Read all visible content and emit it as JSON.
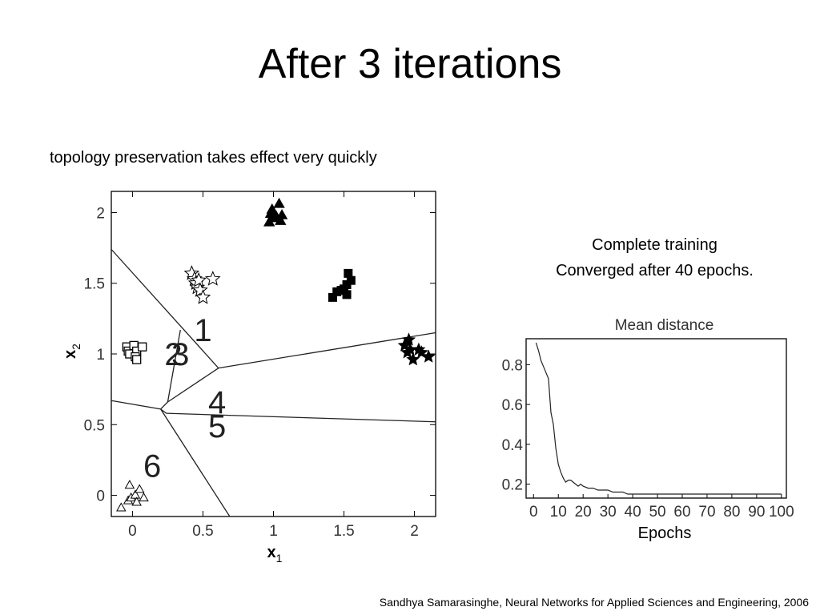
{
  "slide": {
    "title": "After 3 iterations",
    "subtitle": "topology preservation takes effect very quickly",
    "training_note": {
      "line1": "Complete training",
      "line2": "Converged after 40 epochs."
    },
    "citation": "Sandhya Samarasinghe, Neural Networks for Applied Sciences and Engineering, 2006"
  },
  "chart_data": [
    {
      "type": "scatter",
      "title": "",
      "xlabel": "x1",
      "ylabel": "x2",
      "xlim": [
        -0.15,
        2.15
      ],
      "ylim": [
        -0.15,
        2.15
      ],
      "xticks": [
        0,
        0.5,
        1,
        1.5,
        2
      ],
      "yticks": [
        0,
        0.5,
        1,
        1.5,
        2
      ],
      "xtick_labels": [
        "0",
        "0.5",
        "1",
        "1.5",
        "2"
      ],
      "ytick_labels": [
        "0",
        "0.5",
        "1",
        "1.5",
        "2"
      ],
      "grid": false,
      "clusters": [
        {
          "marker": "filled-triangle",
          "points": [
            [
              0.97,
              1.93
            ],
            [
              0.98,
              1.99
            ],
            [
              1.0,
              1.96
            ],
            [
              1.02,
              1.97
            ],
            [
              1.04,
              2.06
            ],
            [
              1.05,
              1.94
            ],
            [
              1.06,
              1.98
            ],
            [
              0.99,
              2.02
            ]
          ]
        },
        {
          "marker": "filled-square",
          "points": [
            [
              1.42,
              1.4
            ],
            [
              1.45,
              1.44
            ],
            [
              1.48,
              1.45
            ],
            [
              1.5,
              1.46
            ],
            [
              1.52,
              1.42
            ],
            [
              1.52,
              1.49
            ],
            [
              1.55,
              1.52
            ],
            [
              1.53,
              1.57
            ]
          ]
        },
        {
          "marker": "open-star",
          "points": [
            [
              0.42,
              1.57
            ],
            [
              0.44,
              1.53
            ],
            [
              0.45,
              1.5
            ],
            [
              0.46,
              1.47
            ],
            [
              0.47,
              1.52
            ],
            [
              0.48,
              1.45
            ],
            [
              0.5,
              1.4
            ],
            [
              0.57,
              1.53
            ]
          ]
        },
        {
          "marker": "open-square",
          "points": [
            [
              -0.04,
              1.05
            ],
            [
              -0.03,
              1.02
            ],
            [
              -0.02,
              1.0
            ],
            [
              0.01,
              1.06
            ],
            [
              0.03,
              1.02
            ],
            [
              0.02,
              0.98
            ],
            [
              0.03,
              0.96
            ],
            [
              0.07,
              1.05
            ]
          ]
        },
        {
          "marker": "filled-star",
          "points": [
            [
              1.93,
              1.06
            ],
            [
              1.95,
              1.01
            ],
            [
              1.97,
              1.03
            ],
            [
              1.99,
              0.96
            ],
            [
              2.03,
              1.03
            ],
            [
              2.05,
              1.01
            ],
            [
              2.1,
              0.98
            ],
            [
              1.96,
              1.1
            ]
          ]
        },
        {
          "marker": "open-triangle",
          "points": [
            [
              -0.08,
              -0.09
            ],
            [
              -0.03,
              -0.04
            ],
            [
              -0.02,
              0.07
            ],
            [
              -0.01,
              -0.02
            ],
            [
              0.02,
              0.0
            ],
            [
              0.03,
              -0.05
            ],
            [
              0.05,
              0.04
            ],
            [
              0.08,
              -0.02
            ]
          ]
        }
      ],
      "neuron_labels": [
        {
          "text": "1",
          "x": 0.5,
          "y": 1.17
        },
        {
          "text": "2",
          "x": 0.29,
          "y": 1.0
        },
        {
          "text": "3",
          "x": 0.34,
          "y": 1.0
        },
        {
          "text": "4",
          "x": 0.6,
          "y": 0.66
        },
        {
          "text": "5",
          "x": 0.6,
          "y": 0.49
        },
        {
          "text": "6",
          "x": 0.14,
          "y": 0.21
        }
      ],
      "boundaries": [
        [
          [
            -0.15,
            1.74
          ],
          [
            0.61,
            0.9
          ]
        ],
        [
          [
            0.61,
            0.9
          ],
          [
            2.15,
            1.15
          ]
        ],
        [
          [
            0.61,
            0.9
          ],
          [
            0.25,
            0.66
          ]
        ],
        [
          [
            0.25,
            0.66
          ],
          [
            0.2,
            0.61
          ]
        ],
        [
          [
            0.25,
            0.66
          ],
          [
            0.34,
            1.17
          ]
        ],
        [
          [
            -0.15,
            0.67
          ],
          [
            0.2,
            0.61
          ]
        ],
        [
          [
            0.2,
            0.61
          ],
          [
            0.24,
            0.58
          ]
        ],
        [
          [
            0.24,
            0.58
          ],
          [
            2.15,
            0.52
          ]
        ],
        [
          [
            0.2,
            0.61
          ],
          [
            0.69,
            -0.15
          ]
        ]
      ]
    },
    {
      "type": "line",
      "title": "Mean distance",
      "xlabel": "Epochs",
      "ylabel": "",
      "xlim": [
        -3,
        102
      ],
      "ylim": [
        0.13,
        0.93
      ],
      "xticks": [
        0,
        10,
        20,
        30,
        40,
        50,
        60,
        70,
        80,
        90,
        100
      ],
      "xtick_labels": [
        "0",
        "10",
        "20",
        "30",
        "40",
        "50",
        "60",
        "70",
        "80",
        "90",
        "100"
      ],
      "yticks": [
        0.2,
        0.4,
        0.6,
        0.8
      ],
      "ytick_labels": [
        "0.2",
        "0.4",
        "0.6",
        "0.8"
      ],
      "grid": false,
      "series": [
        {
          "name": "",
          "x": [
            1,
            2,
            3,
            4,
            5,
            6,
            7,
            8,
            9,
            10,
            11,
            12,
            13,
            14,
            15,
            16,
            17,
            18,
            19,
            20,
            22,
            24,
            26,
            28,
            30,
            32,
            34,
            36,
            38,
            40,
            45,
            50,
            60,
            70,
            80,
            90,
            100
          ],
          "y": [
            0.91,
            0.87,
            0.82,
            0.79,
            0.76,
            0.73,
            0.56,
            0.5,
            0.38,
            0.3,
            0.26,
            0.23,
            0.21,
            0.22,
            0.22,
            0.21,
            0.2,
            0.19,
            0.2,
            0.19,
            0.18,
            0.18,
            0.17,
            0.17,
            0.17,
            0.16,
            0.16,
            0.16,
            0.15,
            0.15,
            0.15,
            0.15,
            0.15,
            0.15,
            0.15,
            0.15,
            0.15
          ]
        }
      ]
    }
  ]
}
